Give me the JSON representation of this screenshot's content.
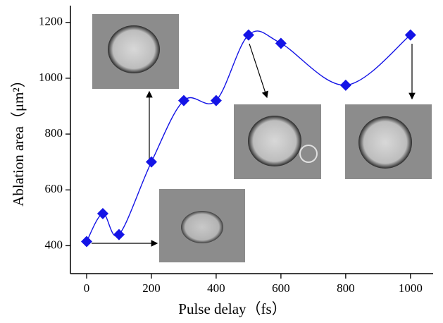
{
  "chart_data": {
    "type": "scatter",
    "x_label": "Pulse delay（fs）",
    "y_label": "Ablation area（μm²）",
    "x": [
      0,
      50,
      100,
      200,
      300,
      400,
      500,
      600,
      800,
      1000
    ],
    "series": [
      {
        "color": "#1414e6",
        "values": [
          415,
          515,
          440,
          700,
          920,
          920,
          1155,
          1125,
          975,
          1155
        ]
      }
    ],
    "xlim": [
      -50,
      1070
    ],
    "ylim": [
      300,
      1260
    ],
    "xticks": [
      0,
      200,
      400,
      600,
      800,
      1000
    ],
    "yticks": [
      400,
      600,
      800,
      1000,
      1200
    ],
    "smooth_line": true
  }
}
